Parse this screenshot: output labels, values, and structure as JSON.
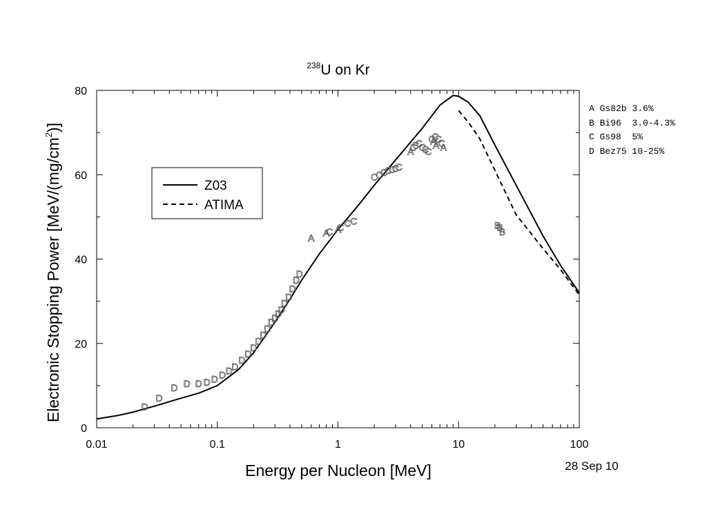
{
  "chart_data": {
    "type": "line",
    "title": {
      "superscript": "238",
      "main": "U on Kr"
    },
    "xlabel": "Energy per Nucleon [MeV]",
    "ylabel": {
      "prefix": "Electronic Stopping Power [MeV/(mg/cm",
      "superscript": "2",
      "suffix": ")]"
    },
    "x_scale": "log",
    "xlim": [
      0.01,
      100
    ],
    "ylim": [
      0,
      80
    ],
    "x_ticks": [
      {
        "value": 0.01,
        "label": "0.01"
      },
      {
        "value": 0.1,
        "label": "0.1"
      },
      {
        "value": 1,
        "label": "1"
      },
      {
        "value": 10,
        "label": "10"
      },
      {
        "value": 100,
        "label": "100"
      }
    ],
    "y_ticks": [
      {
        "value": 0,
        "label": "0"
      },
      {
        "value": 20,
        "label": "20"
      },
      {
        "value": 40,
        "label": "40"
      },
      {
        "value": 60,
        "label": "60"
      },
      {
        "value": 80,
        "label": "80"
      }
    ],
    "grid": false,
    "legend_position": "center-left",
    "series": [
      {
        "name": "Z03",
        "style": "solid",
        "color": "#000000",
        "points": [
          [
            0.01,
            2.1
          ],
          [
            0.015,
            2.9
          ],
          [
            0.02,
            3.7
          ],
          [
            0.03,
            5.1
          ],
          [
            0.05,
            7.0
          ],
          [
            0.07,
            8.2
          ],
          [
            0.1,
            10.0
          ],
          [
            0.15,
            13.8
          ],
          [
            0.2,
            17.8
          ],
          [
            0.3,
            25.0
          ],
          [
            0.4,
            30.5
          ],
          [
            0.5,
            35.0
          ],
          [
            0.7,
            41.2
          ],
          [
            1.0,
            47.0
          ],
          [
            1.5,
            53.0
          ],
          [
            2.0,
            57.5
          ],
          [
            3.0,
            63.5
          ],
          [
            5.0,
            71.0
          ],
          [
            7.0,
            76.5
          ],
          [
            9.0,
            78.8
          ],
          [
            10.0,
            78.6
          ],
          [
            12.0,
            77.2
          ],
          [
            15.0,
            74.0
          ],
          [
            20.0,
            67.0
          ],
          [
            30.0,
            57.5
          ],
          [
            50.0,
            45.5
          ],
          [
            70.0,
            38.5
          ],
          [
            100.0,
            32.0
          ]
        ]
      },
      {
        "name": "ATIMA",
        "style": "dashed",
        "color": "#000000",
        "points": [
          [
            10.0,
            75.2
          ],
          [
            12.0,
            72.5
          ],
          [
            15.0,
            68.5
          ],
          [
            20.0,
            61.0
          ],
          [
            30.0,
            50.5
          ],
          [
            50.0,
            42.5
          ],
          [
            70.0,
            37.5
          ],
          [
            100.0,
            31.5
          ]
        ]
      }
    ],
    "data_points": {
      "A": [
        [
          0.6,
          45.0
        ],
        [
          0.8,
          46.2
        ],
        [
          1.0,
          47.0
        ],
        [
          4.0,
          65.5
        ],
        [
          6.2,
          68.0
        ],
        [
          6.5,
          67.0
        ],
        [
          7.5,
          66.5
        ]
      ],
      "B": [
        [
          21.0,
          48.0
        ],
        [
          22.0,
          47.5
        ],
        [
          23.0,
          46.5
        ]
      ],
      "C": [
        [
          0.85,
          46.5
        ],
        [
          1.05,
          47.5
        ],
        [
          1.2,
          48.5
        ],
        [
          1.35,
          49.0
        ],
        [
          2.0,
          59.5
        ],
        [
          2.2,
          60.0
        ],
        [
          2.4,
          60.5
        ],
        [
          2.6,
          61.0
        ],
        [
          2.8,
          61.3
        ],
        [
          3.0,
          61.5
        ],
        [
          3.2,
          61.8
        ],
        [
          4.2,
          66.5
        ],
        [
          4.4,
          67.0
        ],
        [
          4.7,
          67.5
        ],
        [
          5.0,
          66.5
        ],
        [
          5.3,
          66.0
        ],
        [
          5.6,
          65.5
        ],
        [
          6.0,
          68.5
        ],
        [
          6.4,
          69.0
        ],
        [
          6.8,
          68.5
        ],
        [
          7.2,
          67.5
        ]
      ],
      "D": [
        [
          0.025,
          5.0
        ],
        [
          0.033,
          7.0
        ],
        [
          0.044,
          9.5
        ],
        [
          0.056,
          10.5
        ],
        [
          0.07,
          10.5
        ],
        [
          0.082,
          10.8
        ],
        [
          0.095,
          11.5
        ],
        [
          0.11,
          12.5
        ],
        [
          0.125,
          13.5
        ],
        [
          0.14,
          14.5
        ],
        [
          0.16,
          16.0
        ],
        [
          0.18,
          17.5
        ],
        [
          0.2,
          19.0
        ],
        [
          0.22,
          20.5
        ],
        [
          0.24,
          22.0
        ],
        [
          0.26,
          23.5
        ],
        [
          0.28,
          25.0
        ],
        [
          0.3,
          26.0
        ],
        [
          0.32,
          27.0
        ],
        [
          0.34,
          28.0
        ],
        [
          0.36,
          29.5
        ],
        [
          0.39,
          31.0
        ],
        [
          0.42,
          33.0
        ],
        [
          0.45,
          35.0
        ],
        [
          0.48,
          36.5
        ]
      ]
    },
    "references": [
      {
        "key": "A",
        "text": "A Gs82b 3.6%"
      },
      {
        "key": "B",
        "text": "B Bi96  3.0-4.3%"
      },
      {
        "key": "C",
        "text": "C Gs98  5%"
      },
      {
        "key": "D",
        "text": "D Bez75 10-25%"
      }
    ],
    "date": "28 Sep 10"
  }
}
